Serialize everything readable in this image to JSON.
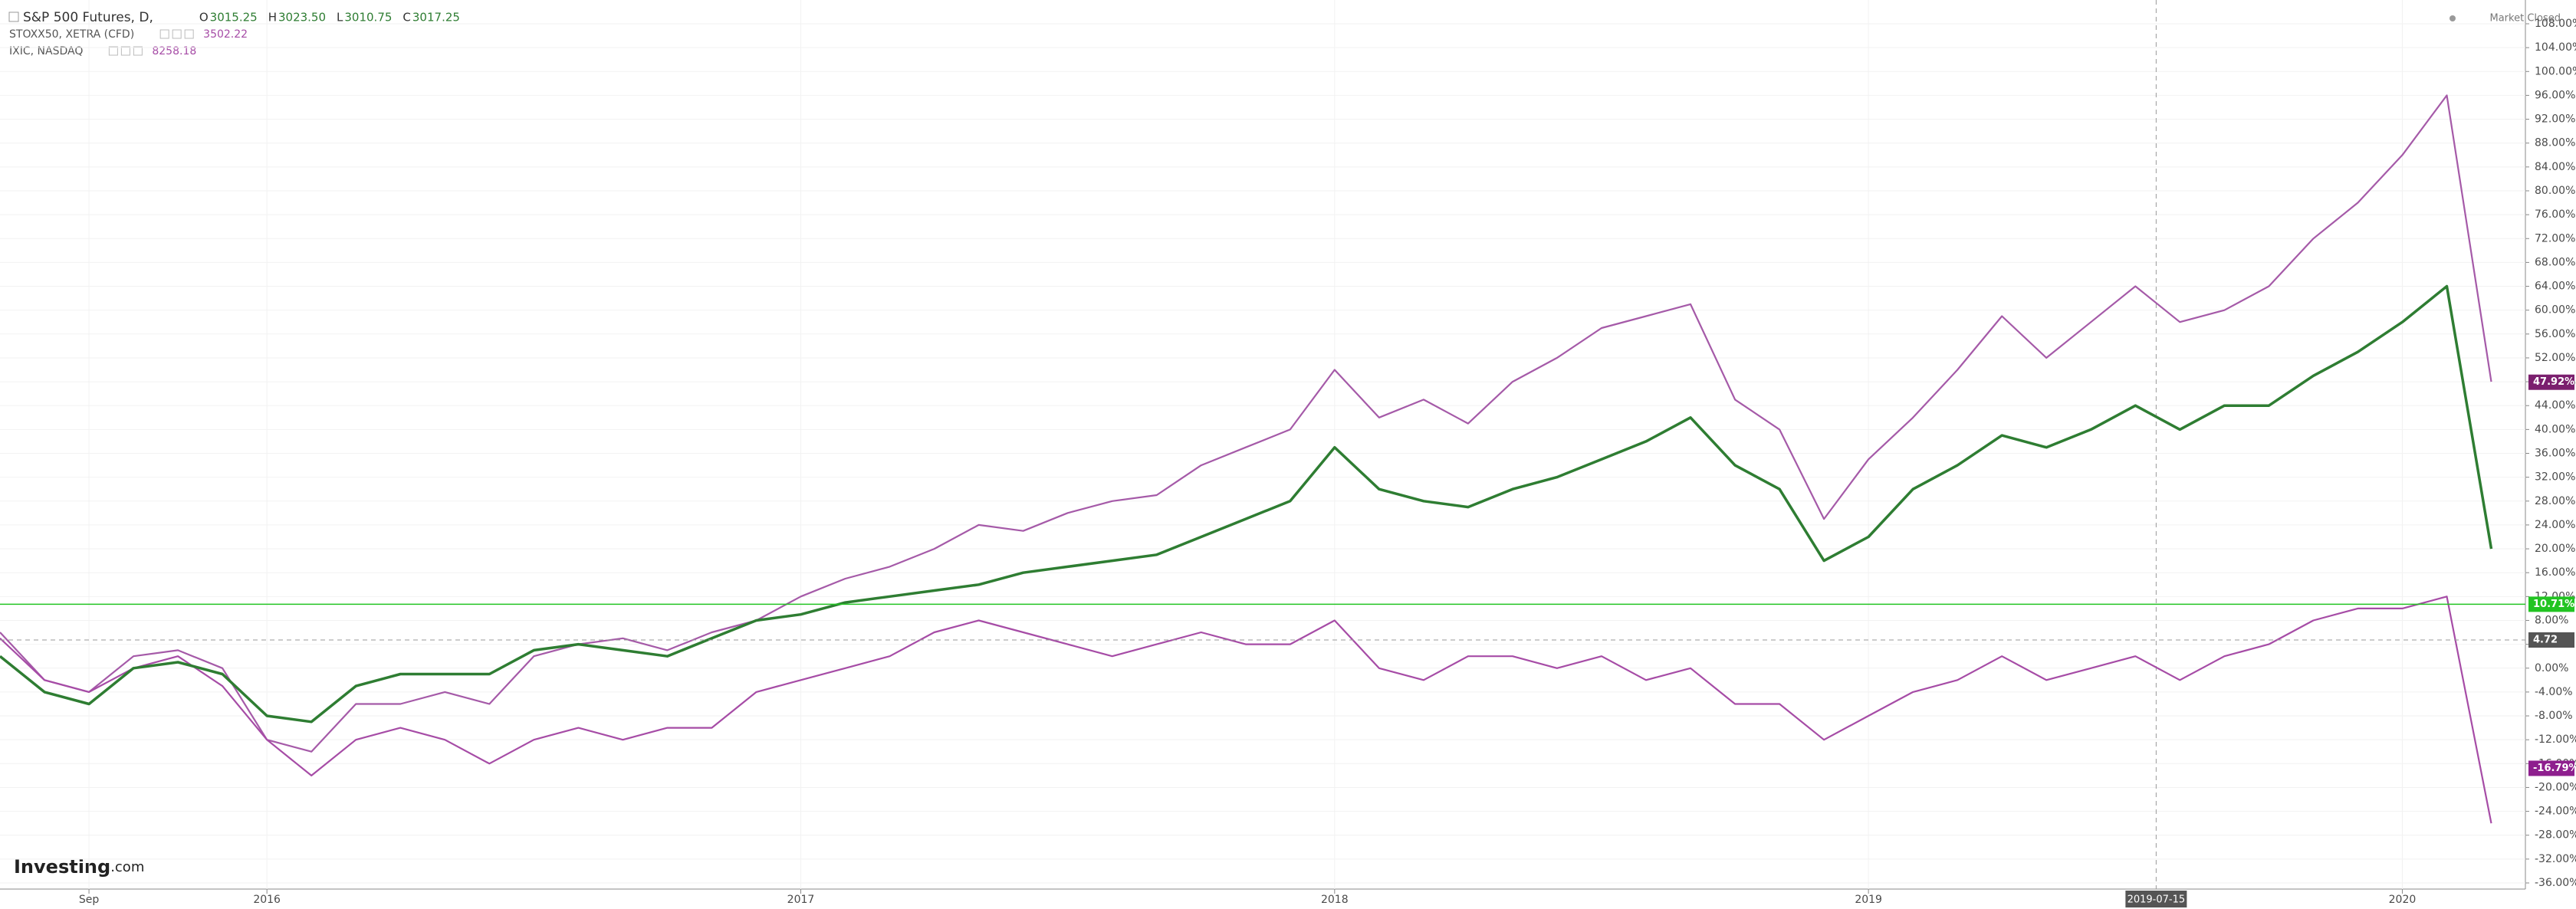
{
  "header": {
    "title": "S&P 500 Futures, D,",
    "ohlc": [
      {
        "key": "O",
        "value": "3015.25"
      },
      {
        "key": "H",
        "value": "3023.50"
      },
      {
        "key": "L",
        "value": "3010.75"
      },
      {
        "key": "C",
        "value": "3017.25"
      }
    ],
    "compare": [
      {
        "name": "STOXX50, XETRA (CFD)",
        "value": "3502.22"
      },
      {
        "name": "IXIC, NASDAQ",
        "value": "8258.18"
      }
    ],
    "status": "Market Closed",
    "logo": "Investing",
    "logo_suffix": ".com"
  },
  "chart_data": {
    "type": "line",
    "x": [
      "2015-07",
      "2015-08",
      "2015-09",
      "2015-10",
      "2015-11",
      "2015-12",
      "2016-01",
      "2016-02",
      "2016-03",
      "2016-04",
      "2016-05",
      "2016-06",
      "2016-07",
      "2016-08",
      "2016-09",
      "2016-10",
      "2016-11",
      "2016-12",
      "2017-01",
      "2017-02",
      "2017-03",
      "2017-04",
      "2017-05",
      "2017-06",
      "2017-07",
      "2017-08",
      "2017-09",
      "2017-10",
      "2017-11",
      "2017-12",
      "2018-01",
      "2018-02",
      "2018-03",
      "2018-04",
      "2018-05",
      "2018-06",
      "2018-07",
      "2018-08",
      "2018-09",
      "2018-10",
      "2018-11",
      "2018-12",
      "2019-01",
      "2019-02",
      "2019-03",
      "2019-04",
      "2019-05",
      "2019-06",
      "2019-07",
      "2019-08",
      "2019-09",
      "2019-10",
      "2019-11",
      "2019-12",
      "2020-01",
      "2020-02",
      "2020-03"
    ],
    "series": [
      {
        "name": "S&P 500 Futures",
        "color": "#2e7d32",
        "values": [
          2,
          -4,
          -6,
          0,
          1,
          -1,
          -8,
          -9,
          -3,
          -1,
          -1,
          -1,
          3,
          4,
          3,
          2,
          5,
          8,
          9,
          11,
          12,
          13,
          14,
          16,
          17,
          18,
          19,
          22,
          25,
          28,
          37,
          30,
          28,
          27,
          30,
          32,
          35,
          38,
          42,
          34,
          30,
          18,
          22,
          30,
          34,
          39,
          37,
          40,
          44,
          40,
          44,
          44,
          49,
          53,
          58,
          64,
          20
        ]
      },
      {
        "name": "IXIC",
        "color": "#a55aa8",
        "values": [
          6,
          -2,
          -4,
          2,
          3,
          0,
          -12,
          -14,
          -6,
          -6,
          -4,
          -6,
          2,
          4,
          5,
          3,
          6,
          8,
          12,
          15,
          17,
          20,
          24,
          23,
          26,
          28,
          29,
          34,
          37,
          40,
          50,
          42,
          45,
          41,
          48,
          52,
          57,
          59,
          61,
          45,
          40,
          25,
          35,
          42,
          50,
          59,
          52,
          58,
          64,
          58,
          60,
          64,
          72,
          78,
          86,
          96,
          48
        ]
      },
      {
        "name": "STOXX50",
        "color": "#a64ca6",
        "values": [
          5,
          -2,
          -4,
          0,
          2,
          -3,
          -12,
          -18,
          -12,
          -10,
          -12,
          -16,
          -12,
          -10,
          -12,
          -10,
          -10,
          -4,
          -2,
          0,
          2,
          6,
          8,
          6,
          4,
          2,
          4,
          6,
          4,
          4,
          8,
          0,
          -2,
          2,
          2,
          0,
          2,
          -2,
          0,
          -6,
          -6,
          -12,
          -8,
          -4,
          -2,
          2,
          -2,
          0,
          2,
          -2,
          2,
          4,
          8,
          10,
          10,
          12,
          -26
        ]
      }
    ],
    "xlim": [
      "2015-07",
      "2020-03-24"
    ],
    "xticks": [
      {
        "value": "2015-09",
        "label": "Sep"
      },
      {
        "value": "2016-01",
        "label": "2016"
      },
      {
        "value": "2017-01",
        "label": "2017"
      },
      {
        "value": "2018-01",
        "label": "2018"
      },
      {
        "value": "2019-01",
        "label": "2019"
      },
      {
        "value": "2020-01",
        "label": "2020"
      }
    ],
    "crosshair": {
      "x": "2019-07-15"
    },
    "ylim": [
      -36,
      108
    ],
    "yticks": [
      {
        "value": 108,
        "label": "108.00%"
      },
      {
        "value": 104,
        "label": "104.00%"
      },
      {
        "value": 100,
        "label": "100.00%"
      },
      {
        "value": 96,
        "label": "96.00%"
      },
      {
        "value": 92,
        "label": "92.00%"
      },
      {
        "value": 88,
        "label": "88.00%"
      },
      {
        "value": 84,
        "label": "84.00%"
      },
      {
        "value": 80,
        "label": "80.00%"
      },
      {
        "value": 76,
        "label": "76.00%"
      },
      {
        "value": 72,
        "label": "72.00%"
      },
      {
        "value": 68,
        "label": "68.00%"
      },
      {
        "value": 64,
        "label": "64.00%"
      },
      {
        "value": 60,
        "label": "60.00%"
      },
      {
        "value": 56,
        "label": "56.00%"
      },
      {
        "value": 52,
        "label": "52.00%"
      },
      {
        "value": 48,
        "label": "48.00%"
      },
      {
        "value": 44,
        "label": "44.00%"
      },
      {
        "value": 40,
        "label": "40.00%"
      },
      {
        "value": 36,
        "label": "36.00%"
      },
      {
        "value": 32,
        "label": "32.00%"
      },
      {
        "value": 28,
        "label": "28.00%"
      },
      {
        "value": 24,
        "label": "24.00%"
      },
      {
        "value": 20,
        "label": "20.00%"
      },
      {
        "value": 16,
        "label": "16.00%"
      },
      {
        "value": 12,
        "label": "12.00%"
      },
      {
        "value": 8,
        "label": "8.00%"
      },
      {
        "value": 4,
        "label": "4.00%"
      },
      {
        "value": 0,
        "label": "0.00%"
      },
      {
        "value": -4,
        "label": "-4.00%"
      },
      {
        "value": -8,
        "label": "-8.00%"
      },
      {
        "value": -12,
        "label": "-12.00%"
      },
      {
        "value": -16,
        "label": "-16.00%"
      },
      {
        "value": -20,
        "label": "-20.00%"
      },
      {
        "value": -24,
        "label": "-24.00%"
      },
      {
        "value": -28,
        "label": "-28.00%"
      },
      {
        "value": -32,
        "label": "-32.00%"
      },
      {
        "value": -36,
        "label": "-36.00%"
      }
    ],
    "grid": true,
    "price_labels": [
      {
        "value": 47.92,
        "label": "47.92%",
        "color": "#7b1f6e"
      },
      {
        "value": 10.71,
        "label": "10.71%",
        "color": "#22c422"
      },
      {
        "value": 4.72,
        "label": "4.72",
        "color": "#555555"
      },
      {
        "value": -16.79,
        "label": "-16.79%",
        "color": "#8e1f8e"
      }
    ]
  }
}
